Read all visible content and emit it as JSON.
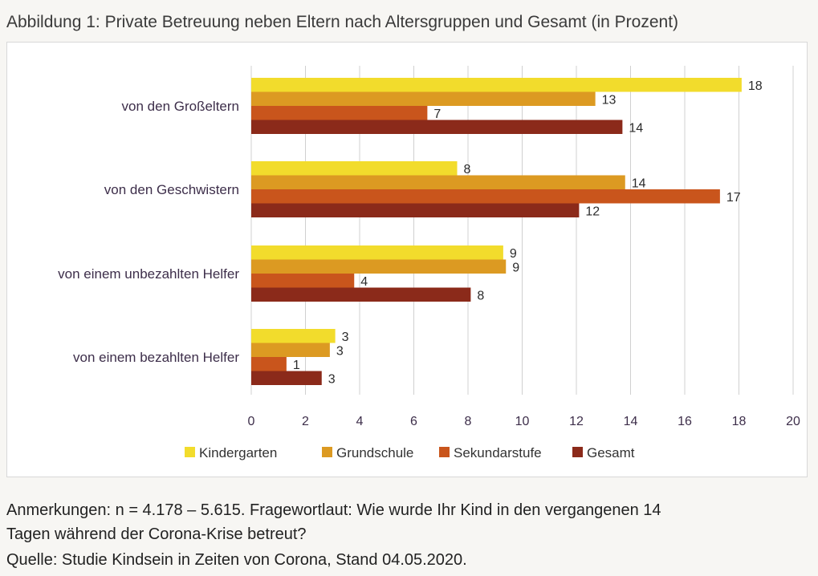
{
  "title": "Abbildung 1: Private Betreuung neben Eltern nach Altersgruppen und Gesamt (in Prozent)",
  "notes": {
    "line1": "Anmerkungen: n = 4.178 – 5.615. Fragewortlaut: Wie wurde Ihr Kind in den vergangenen 14",
    "line2": "Tagen während der Corona-Krise betreut?",
    "line3": "Quelle: Studie Kindsein in Zeiten von Corona, Stand 04.05.2020."
  },
  "colors": {
    "Kindergarten": "#f2dc2c",
    "Grundschule": "#dc9a22",
    "Sekundarstufe": "#c9551c",
    "Gesamt": "#8b2a1a",
    "grid": "#d0d0d0"
  },
  "chart_data": {
    "type": "bar",
    "orientation": "horizontal",
    "title": "Abbildung 1: Private Betreuung neben Eltern nach Altersgruppen und Gesamt (in Prozent)",
    "categories": [
      "von den Großeltern",
      "von den Geschwistern",
      "von einem unbezahlten Helfer",
      "von einem bezahlten Helfer"
    ],
    "series": [
      {
        "name": "Kindergarten",
        "values": [
          18,
          8,
          9,
          3
        ],
        "bar_values": [
          18.1,
          7.6,
          9.3,
          3.1
        ]
      },
      {
        "name": "Grundschule",
        "values": [
          13,
          14,
          9,
          3
        ],
        "bar_values": [
          12.7,
          13.8,
          9.4,
          2.9
        ]
      },
      {
        "name": "Sekundarstufe",
        "values": [
          7,
          17,
          4,
          1
        ],
        "bar_values": [
          6.5,
          17.3,
          3.8,
          1.3
        ]
      },
      {
        "name": "Gesamt",
        "values": [
          14,
          12,
          8,
          3
        ],
        "bar_values": [
          13.7,
          12.1,
          8.1,
          2.6
        ]
      }
    ],
    "xlim": [
      0,
      20
    ],
    "xticks": [
      "0",
      "2",
      "4",
      "6",
      "8",
      "10",
      "12",
      "14",
      "16",
      "18",
      "20"
    ],
    "grid": "vertical",
    "legend": "bottom"
  }
}
